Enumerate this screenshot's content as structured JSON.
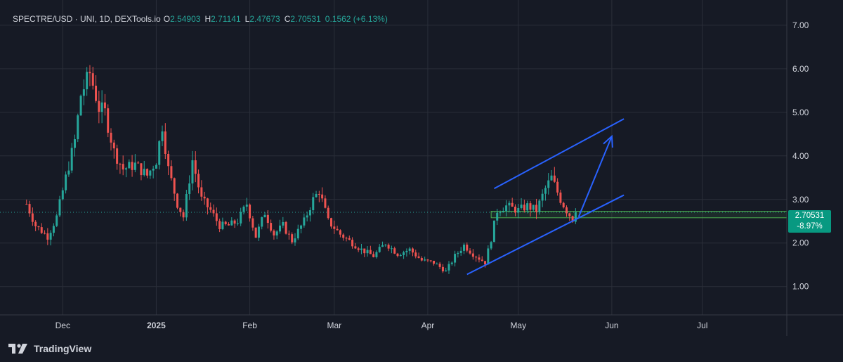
{
  "legend": {
    "symbol": "SPECTRE/USD · UNI, 1D, DEXTools.io",
    "open_label": "O",
    "open": "2.54903",
    "high_label": "H",
    "high": "2.71141",
    "low_label": "L",
    "low": "2.47673",
    "close_label": "C",
    "close": "2.70531",
    "change": "0.1562 (+6.13%)"
  },
  "price_badge": {
    "price": "2.70531",
    "change": "-8.97%"
  },
  "branding": {
    "name": "TradingView",
    "icon": "tradingview-logo-icon"
  },
  "colors": {
    "background": "#161a25",
    "up": "#26a69a",
    "down": "#ef5350",
    "grid": "#2a2e39",
    "axis_text": "#d1d4dc",
    "drawing": "#2962ff",
    "badge": "#089981"
  },
  "chart_data": {
    "type": "candlestick",
    "timeframe": "1D",
    "y_axis": {
      "ticks": [
        "1.00",
        "2.00",
        "3.00",
        "4.00",
        "5.00",
        "6.00",
        "7.00"
      ],
      "range": [
        0.35,
        7.45
      ]
    },
    "x_axis": {
      "labels": [
        "Dec",
        "2025",
        "Feb",
        "Mar",
        "Apr",
        "May",
        "Jun",
        "Jul"
      ]
    },
    "grid": true,
    "last_price": 2.70531,
    "key_path": [
      [
        "2024-11-19",
        2.9
      ],
      [
        "2024-11-22",
        2.4
      ],
      [
        "2024-11-26",
        2.15
      ],
      [
        "2024-11-29",
        2.6
      ],
      [
        "2024-12-02",
        3.5
      ],
      [
        "2024-12-05",
        4.35
      ],
      [
        "2024-12-07",
        5.4
      ],
      [
        "2024-12-10",
        5.9
      ],
      [
        "2024-12-13",
        5.1
      ],
      [
        "2024-12-15",
        5.0
      ],
      [
        "2024-12-18",
        4.1
      ],
      [
        "2024-12-21",
        3.7
      ],
      [
        "2024-12-25",
        3.8
      ],
      [
        "2024-12-29",
        3.55
      ],
      [
        "2025-01-01",
        3.9
      ],
      [
        "2025-01-03",
        4.7
      ],
      [
        "2025-01-05",
        3.7
      ],
      [
        "2025-01-08",
        2.9
      ],
      [
        "2025-01-10",
        2.6
      ],
      [
        "2025-01-13",
        3.9
      ],
      [
        "2025-01-16",
        3.0
      ],
      [
        "2025-01-19",
        2.75
      ],
      [
        "2025-01-22",
        2.4
      ],
      [
        "2025-01-25",
        2.4
      ],
      [
        "2025-01-28",
        2.5
      ],
      [
        "2025-01-31",
        2.9
      ],
      [
        "2025-02-03",
        2.15
      ],
      [
        "2025-02-06",
        2.7
      ],
      [
        "2025-02-09",
        2.2
      ],
      [
        "2025-02-12",
        2.4
      ],
      [
        "2025-02-15",
        2.05
      ],
      [
        "2025-02-19",
        2.5
      ],
      [
        "2025-02-22",
        3.0
      ],
      [
        "2025-02-24",
        3.2
      ],
      [
        "2025-02-27",
        2.5
      ],
      [
        "2025-03-03",
        2.2
      ],
      [
        "2025-03-07",
        2.0
      ],
      [
        "2025-03-10",
        1.85
      ],
      [
        "2025-03-14",
        1.7
      ],
      [
        "2025-03-18",
        2.0
      ],
      [
        "2025-03-22",
        1.75
      ],
      [
        "2025-03-26",
        1.85
      ],
      [
        "2025-03-30",
        1.6
      ],
      [
        "2025-04-03",
        1.55
      ],
      [
        "2025-04-07",
        1.35
      ],
      [
        "2025-04-10",
        1.7
      ],
      [
        "2025-04-13",
        1.95
      ],
      [
        "2025-04-16",
        1.75
      ],
      [
        "2025-04-20",
        1.55
      ],
      [
        "2025-04-22",
        2.1
      ],
      [
        "2025-04-24",
        2.75
      ],
      [
        "2025-04-27",
        2.85
      ],
      [
        "2025-05-01",
        2.75
      ],
      [
        "2025-05-04",
        2.85
      ],
      [
        "2025-05-07",
        2.75
      ],
      [
        "2025-05-10",
        3.25
      ],
      [
        "2025-05-12",
        3.5
      ],
      [
        "2025-05-15",
        3.0
      ],
      [
        "2025-05-17",
        2.75
      ],
      [
        "2025-05-19",
        2.55
      ],
      [
        "2025-05-20",
        2.7
      ]
    ],
    "annotations": {
      "upper_channel_line": [
        [
          "2025-04-23",
          3.25
        ],
        [
          "2025-06-05",
          4.85
        ]
      ],
      "lower_channel_line": [
        [
          "2025-04-14",
          1.28
        ],
        [
          "2025-06-05",
          3.1
        ]
      ],
      "projection_arrow": [
        [
          "2025-05-21",
          2.6
        ],
        [
          "2025-06-01",
          4.45
        ]
      ],
      "support_zone": {
        "from": "2025-04-22",
        "price_low": 2.58,
        "price_high": 2.73
      }
    }
  }
}
